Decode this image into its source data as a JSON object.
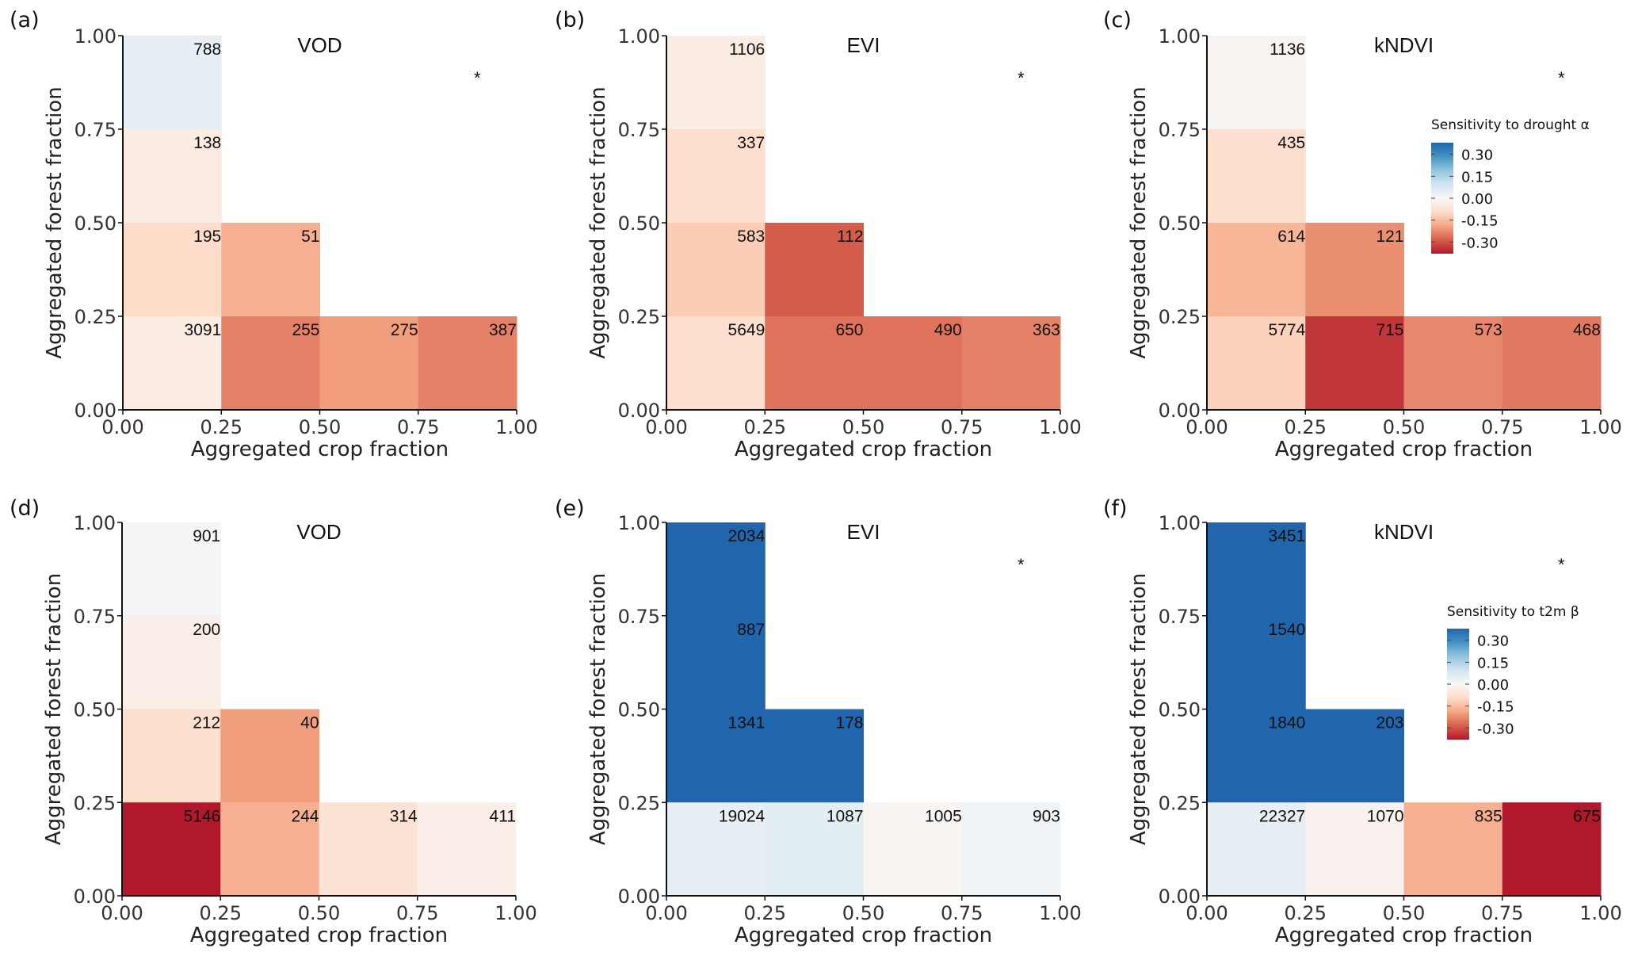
{
  "chart_data": [
    {
      "type": "heatmap",
      "panel": "(a)",
      "title": "VOD",
      "xlabel": "Aggregated crop fraction",
      "ylabel": "Aggregated forest fraction",
      "xlim": [
        0,
        1
      ],
      "ylim": [
        0,
        1
      ],
      "xticks": [
        "0.00",
        "0.25",
        "0.50",
        "0.75",
        "1.00"
      ],
      "yticks": [
        "0.00",
        "0.25",
        "0.50",
        "0.75",
        "1.00"
      ],
      "asterisk": {
        "x": 0.9,
        "y": 0.9,
        "text": "*"
      },
      "cells": [
        {
          "x0": 0.0,
          "y0": 0.75,
          "count": "788",
          "value": 0.04
        },
        {
          "x0": 0.0,
          "y0": 0.5,
          "count": "138",
          "value": -0.04
        },
        {
          "x0": 0.0,
          "y0": 0.25,
          "count": "195",
          "value": -0.09
        },
        {
          "x0": 0.25,
          "y0": 0.25,
          "count": "51",
          "value": -0.17
        },
        {
          "x0": 0.0,
          "y0": 0.0,
          "count": "3091",
          "value": -0.04
        },
        {
          "x0": 0.25,
          "y0": 0.0,
          "count": "255",
          "value": -0.24
        },
        {
          "x0": 0.5,
          "y0": 0.0,
          "count": "275",
          "value": -0.2
        },
        {
          "x0": 0.75,
          "y0": 0.0,
          "count": "387",
          "value": -0.24
        }
      ]
    },
    {
      "type": "heatmap",
      "panel": "(b)",
      "title": "EVI",
      "xlabel": "Aggregated crop fraction",
      "ylabel": "Aggregated forest fraction",
      "xlim": [
        0,
        1
      ],
      "ylim": [
        0,
        1
      ],
      "xticks": [
        "0.00",
        "0.25",
        "0.50",
        "0.75",
        "1.00"
      ],
      "yticks": [
        "0.00",
        "0.25",
        "0.50",
        "0.75",
        "1.00"
      ],
      "asterisk": {
        "x": 0.9,
        "y": 0.9,
        "text": "*"
      },
      "cells": [
        {
          "x0": 0.0,
          "y0": 0.75,
          "count": "1106",
          "value": -0.04
        },
        {
          "x0": 0.0,
          "y0": 0.5,
          "count": "337",
          "value": -0.08
        },
        {
          "x0": 0.0,
          "y0": 0.25,
          "count": "583",
          "value": -0.12
        },
        {
          "x0": 0.25,
          "y0": 0.25,
          "count": "112",
          "value": -0.29
        },
        {
          "x0": 0.0,
          "y0": 0.0,
          "count": "5649",
          "value": -0.08
        },
        {
          "x0": 0.25,
          "y0": 0.0,
          "count": "650",
          "value": -0.26
        },
        {
          "x0": 0.5,
          "y0": 0.0,
          "count": "490",
          "value": -0.26
        },
        {
          "x0": 0.75,
          "y0": 0.0,
          "count": "363",
          "value": -0.24
        }
      ]
    },
    {
      "type": "heatmap",
      "panel": "(c)",
      "title": "kNDVI",
      "xlabel": "Aggregated crop fraction",
      "ylabel": "Aggregated forest fraction",
      "xlim": [
        0,
        1
      ],
      "ylim": [
        0,
        1
      ],
      "xticks": [
        "0.00",
        "0.25",
        "0.50",
        "0.75",
        "1.00"
      ],
      "yticks": [
        "0.00",
        "0.25",
        "0.50",
        "0.75",
        "1.00"
      ],
      "asterisk": {
        "x": 0.9,
        "y": 0.9,
        "text": "*"
      },
      "legend": {
        "title": "Sensitivity to drought α",
        "placement": "right",
        "range": [
          -0.38,
          0.38
        ],
        "ticks": [
          "0.30",
          "0.15",
          "0.00",
          "-0.15",
          "-0.30"
        ],
        "tick_values": [
          0.3,
          0.15,
          0.0,
          -0.15,
          -0.3
        ]
      },
      "cells": [
        {
          "x0": 0.0,
          "y0": 0.75,
          "count": "1136",
          "value": -0.01
        },
        {
          "x0": 0.0,
          "y0": 0.5,
          "count": "435",
          "value": -0.08
        },
        {
          "x0": 0.0,
          "y0": 0.25,
          "count": "614",
          "value": -0.16
        },
        {
          "x0": 0.25,
          "y0": 0.25,
          "count": "121",
          "value": -0.22
        },
        {
          "x0": 0.0,
          "y0": 0.0,
          "count": "5774",
          "value": -0.11
        },
        {
          "x0": 0.25,
          "y0": 0.0,
          "count": "715",
          "value": -0.34
        },
        {
          "x0": 0.5,
          "y0": 0.0,
          "count": "573",
          "value": -0.23
        },
        {
          "x0": 0.75,
          "y0": 0.0,
          "count": "468",
          "value": -0.25
        }
      ]
    },
    {
      "type": "heatmap",
      "panel": "(d)",
      "title": "VOD",
      "xlabel": "Aggregated crop fraction",
      "ylabel": "Aggregated forest fraction",
      "xlim": [
        0,
        1
      ],
      "ylim": [
        0,
        1
      ],
      "xticks": [
        "0.00",
        "0.25",
        "0.50",
        "0.75",
        "1.00"
      ],
      "yticks": [
        "0.00",
        "0.25",
        "0.50",
        "0.75",
        "1.00"
      ],
      "asterisk": null,
      "cells": [
        {
          "x0": 0.0,
          "y0": 0.75,
          "count": "901",
          "value": 0.01
        },
        {
          "x0": 0.0,
          "y0": 0.5,
          "count": "200",
          "value": -0.03
        },
        {
          "x0": 0.0,
          "y0": 0.25,
          "count": "212",
          "value": -0.08
        },
        {
          "x0": 0.25,
          "y0": 0.25,
          "count": "40",
          "value": -0.2
        },
        {
          "x0": 0.0,
          "y0": 0.0,
          "count": "5146",
          "value": -0.38
        },
        {
          "x0": 0.25,
          "y0": 0.0,
          "count": "244",
          "value": -0.17
        },
        {
          "x0": 0.5,
          "y0": 0.0,
          "count": "314",
          "value": -0.07
        },
        {
          "x0": 0.75,
          "y0": 0.0,
          "count": "411",
          "value": -0.03
        }
      ]
    },
    {
      "type": "heatmap",
      "panel": "(e)",
      "title": "EVI",
      "xlabel": "Aggregated crop fraction",
      "ylabel": "Aggregated forest fraction",
      "xlim": [
        0,
        1
      ],
      "ylim": [
        0,
        1
      ],
      "xticks": [
        "0.00",
        "0.25",
        "0.50",
        "0.75",
        "1.00"
      ],
      "yticks": [
        "0.00",
        "0.25",
        "0.50",
        "0.75",
        "1.00"
      ],
      "asterisk": {
        "x": 0.9,
        "y": 0.9,
        "text": "*"
      },
      "cells": [
        {
          "x0": 0.0,
          "y0": 0.75,
          "count": "2034",
          "value": 0.38
        },
        {
          "x0": 0.0,
          "y0": 0.5,
          "count": "887",
          "value": 0.38
        },
        {
          "x0": 0.0,
          "y0": 0.25,
          "count": "1341",
          "value": 0.38
        },
        {
          "x0": 0.25,
          "y0": 0.25,
          "count": "178",
          "value": 0.38
        },
        {
          "x0": 0.0,
          "y0": 0.0,
          "count": "19024",
          "value": 0.04
        },
        {
          "x0": 0.25,
          "y0": 0.0,
          "count": "1087",
          "value": 0.05
        },
        {
          "x0": 0.5,
          "y0": 0.0,
          "count": "1005",
          "value": -0.01
        },
        {
          "x0": 0.75,
          "y0": 0.0,
          "count": "903",
          "value": 0.02
        }
      ]
    },
    {
      "type": "heatmap",
      "panel": "(f)",
      "title": "kNDVI",
      "xlabel": "Aggregated crop fraction",
      "ylabel": "Aggregated forest fraction",
      "xlim": [
        0,
        1
      ],
      "ylim": [
        0,
        1
      ],
      "xticks": [
        "0.00",
        "0.25",
        "0.50",
        "0.75",
        "1.00"
      ],
      "yticks": [
        "0.00",
        "0.25",
        "0.50",
        "0.75",
        "1.00"
      ],
      "asterisk": {
        "x": 0.9,
        "y": 0.9,
        "text": "*"
      },
      "legend": {
        "title": "Sensitivity to t2m β",
        "placement": "right",
        "range": [
          -0.38,
          0.38
        ],
        "ticks": [
          "0.30",
          "0.15",
          "0.00",
          "-0.15",
          "-0.30"
        ],
        "tick_values": [
          0.3,
          0.15,
          0.0,
          -0.15,
          -0.3
        ]
      },
      "cells": [
        {
          "x0": 0.0,
          "y0": 0.75,
          "count": "3451",
          "value": 0.38
        },
        {
          "x0": 0.0,
          "y0": 0.5,
          "count": "1540",
          "value": 0.38
        },
        {
          "x0": 0.0,
          "y0": 0.25,
          "count": "1840",
          "value": 0.38
        },
        {
          "x0": 0.25,
          "y0": 0.25,
          "count": "203",
          "value": 0.38
        },
        {
          "x0": 0.0,
          "y0": 0.0,
          "count": "22327",
          "value": 0.04
        },
        {
          "x0": 0.25,
          "y0": 0.0,
          "count": "1070",
          "value": -0.02
        },
        {
          "x0": 0.5,
          "y0": 0.0,
          "count": "835",
          "value": -0.17
        },
        {
          "x0": 0.75,
          "y0": 0.0,
          "count": "675",
          "value": -0.38
        }
      ]
    }
  ],
  "colormap": {
    "name": "RdBu",
    "stops": [
      "#b2182b",
      "#d6604d",
      "#f4a582",
      "#fddbc7",
      "#f7f7f7",
      "#d1e5f0",
      "#92c5de",
      "#4393c3",
      "#2166ac"
    ]
  },
  "cell_width": 0.25
}
